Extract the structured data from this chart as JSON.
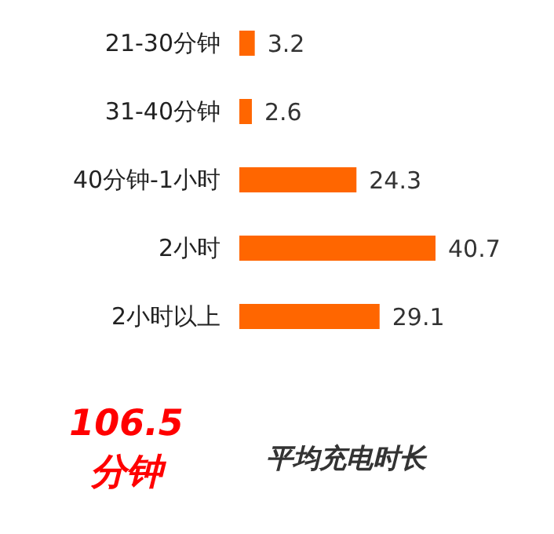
{
  "chart_data": {
    "type": "bar",
    "orientation": "horizontal",
    "categories": [
      "21-30分钟",
      "31-40分钟",
      "40分钟-1小时",
      "2小时",
      "2小时以上"
    ],
    "values": [
      3.2,
      2.6,
      24.3,
      40.7,
      29.1
    ],
    "color": "#ff6600",
    "data_labels": true,
    "grid": false,
    "annotations": [
      "106.5\n分钟",
      "平均充电时长"
    ]
  }
}
